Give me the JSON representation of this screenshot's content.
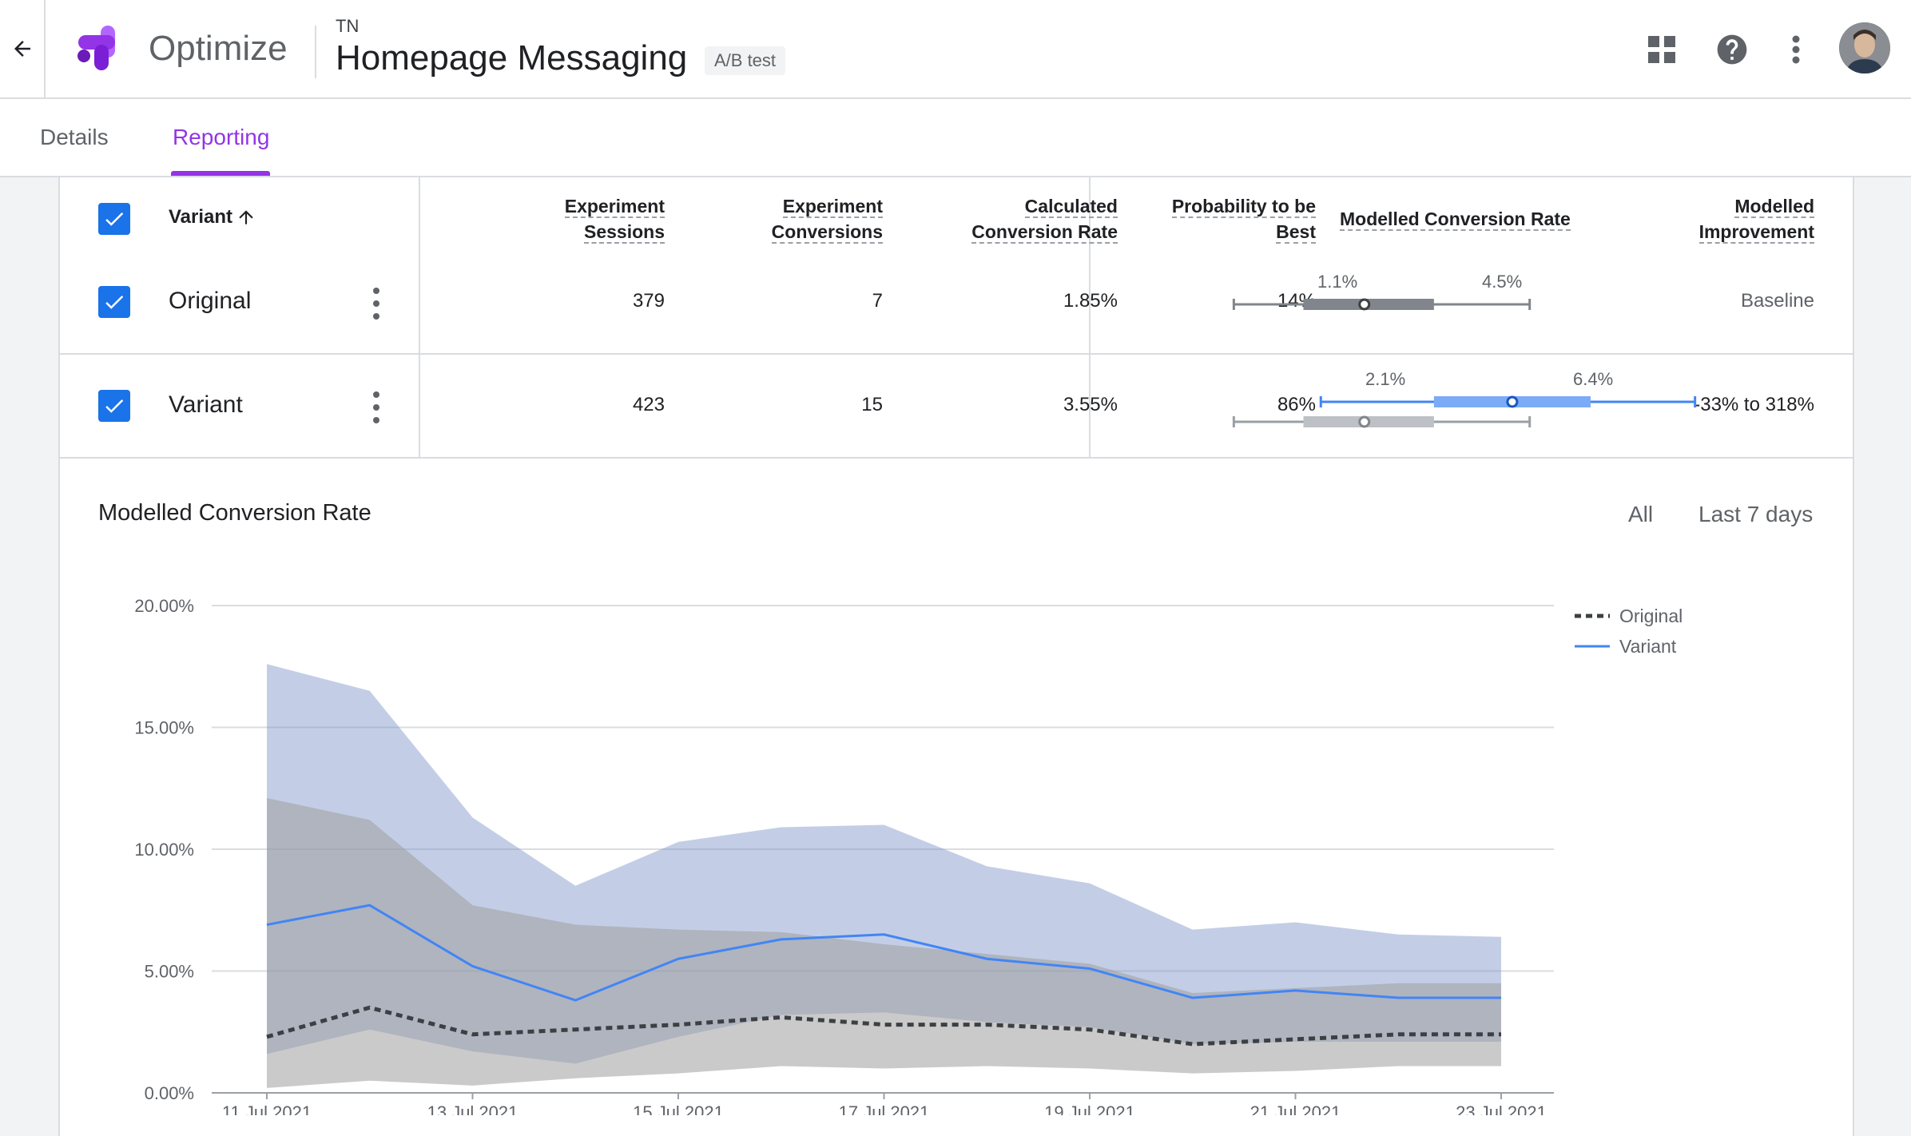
{
  "header": {
    "product": "Optimize",
    "account": "TN",
    "experiment_title": "Homepage Messaging",
    "experiment_type": "A/B test",
    "icons": [
      "back-arrow-icon",
      "apps-grid-icon",
      "help-icon",
      "more-vert-icon"
    ]
  },
  "tabs": [
    {
      "label": "Details",
      "active": false
    },
    {
      "label": "Reporting",
      "active": true
    }
  ],
  "table": {
    "variant_header": "Variant",
    "columns": {
      "sessions": [
        "Experiment",
        "Sessions"
      ],
      "conversions": [
        "Experiment",
        "Conversions"
      ],
      "calc_rate": [
        "Calculated",
        "Conversion Rate"
      ],
      "prob_best": [
        "Probability to be",
        "Best"
      ],
      "modelled_rate": "Modelled Conversion Rate",
      "improvement": [
        "Modelled",
        "Improvement"
      ]
    },
    "rows": [
      {
        "name": "Original",
        "sessions": "379",
        "conversions": "7",
        "calc_rate": "1.85%",
        "prob_best": "14%",
        "ci_low": "1.1%",
        "ci_high": "4.5%",
        "improvement": "Baseline"
      },
      {
        "name": "Variant",
        "sessions": "423",
        "conversions": "15",
        "calc_rate": "3.55%",
        "prob_best": "86%",
        "ci_low": "2.1%",
        "ci_high": "6.4%",
        "improvement": "-33% to 318%"
      }
    ],
    "ci_scale": {
      "min": 0.5,
      "max": 7.0
    },
    "ci_ranges": {
      "original": {
        "low": 1.1,
        "q1": 1.9,
        "median": 2.6,
        "q3": 3.4,
        "high": 4.5
      },
      "variant": {
        "low": 2.1,
        "q1": 3.4,
        "median": 4.3,
        "q3": 5.2,
        "high": 6.4
      }
    }
  },
  "chart_section": {
    "title": "Modelled Conversion Rate",
    "range_options": [
      "All",
      "Last 7 days"
    ]
  },
  "chart_data": {
    "type": "line",
    "title": "Modelled Conversion Rate",
    "x": [
      "11 Jul 2021",
      "12 Jul 2021",
      "13 Jul 2021",
      "14 Jul 2021",
      "15 Jul 2021",
      "16 Jul 2021",
      "17 Jul 2021",
      "18 Jul 2021",
      "19 Jul 2021",
      "20 Jul 2021",
      "21 Jul 2021",
      "22 Jul 2021",
      "23 Jul 2021"
    ],
    "x_tick_labels": [
      "11 Jul 2021",
      "13 Jul 2021",
      "15 Jul 2021",
      "17 Jul 2021",
      "19 Jul 2021",
      "21 Jul 2021",
      "23 Jul 2021"
    ],
    "y_ticks": [
      "0.00%",
      "5.00%",
      "10.00%",
      "15.00%",
      "20.00%"
    ],
    "ylim": [
      0,
      20
    ],
    "grid": true,
    "legend_position": "top-right",
    "series": [
      {
        "name": "Original",
        "style": "dotted",
        "color": "#3c4043",
        "values": [
          2.3,
          3.5,
          2.4,
          2.6,
          2.8,
          3.1,
          2.8,
          2.8,
          2.6,
          2.0,
          2.2,
          2.4,
          2.4
        ],
        "band_low": [
          0.2,
          0.5,
          0.3,
          0.6,
          0.8,
          1.1,
          1.0,
          1.1,
          1.0,
          0.8,
          0.9,
          1.1,
          1.1
        ],
        "band_high": [
          12.1,
          11.2,
          7.7,
          6.9,
          6.7,
          6.6,
          6.1,
          5.7,
          5.3,
          4.1,
          4.3,
          4.5,
          4.5
        ],
        "band_color": "#9e9e9e"
      },
      {
        "name": "Variant",
        "style": "solid",
        "color": "#4285f4",
        "values": [
          6.9,
          7.7,
          5.2,
          3.8,
          5.5,
          6.3,
          6.5,
          5.5,
          5.1,
          3.9,
          4.2,
          3.9,
          3.9
        ],
        "band_low": [
          1.6,
          2.6,
          1.7,
          1.2,
          2.3,
          3.2,
          3.3,
          2.9,
          2.7,
          2.0,
          2.1,
          2.1,
          2.1
        ],
        "band_high": [
          17.6,
          16.5,
          11.3,
          8.5,
          10.3,
          10.9,
          11.0,
          9.3,
          8.6,
          6.7,
          7.0,
          6.5,
          6.4
        ],
        "band_color": "#7b93c7"
      }
    ]
  }
}
